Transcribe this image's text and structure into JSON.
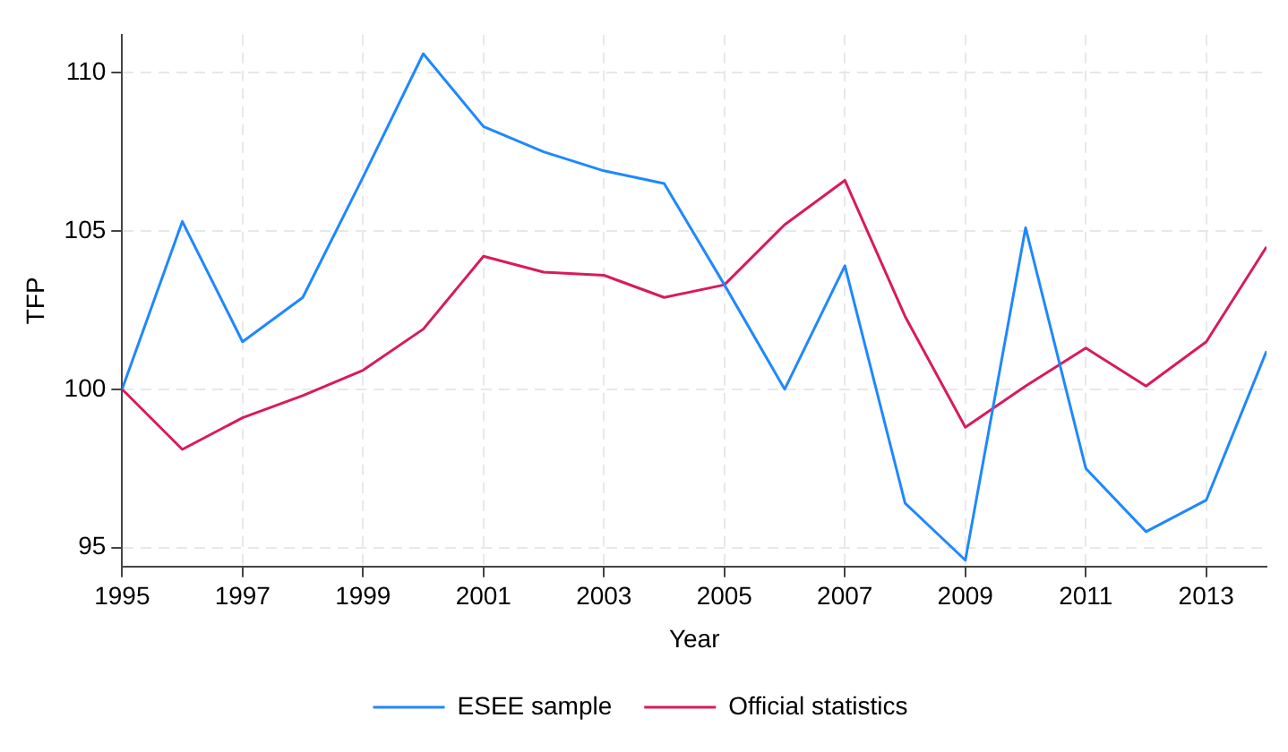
{
  "chart_data": {
    "type": "line",
    "xlabel": "Year",
    "ylabel": "TFP",
    "x": [
      1995,
      1996,
      1997,
      1998,
      1999,
      2000,
      2001,
      2002,
      2003,
      2004,
      2005,
      2006,
      2007,
      2008,
      2009,
      2010,
      2011,
      2012,
      2013,
      2014
    ],
    "series": [
      {
        "name": "ESEE sample",
        "color": "#1e88ff",
        "values": [
          100,
          105.3,
          101.5,
          102.9,
          106.7,
          110.6,
          108.3,
          107.5,
          106.9,
          106.5,
          103.3,
          100.0,
          103.9,
          96.4,
          94.6,
          105.1,
          97.5,
          95.5,
          96.5,
          101.2
        ]
      },
      {
        "name": "Official statistics",
        "color": "#d81b5a",
        "values": [
          100,
          98.1,
          99.1,
          99.8,
          100.6,
          101.9,
          104.2,
          103.7,
          103.6,
          102.9,
          103.3,
          105.2,
          106.6,
          102.3,
          98.8,
          100.1,
          101.3,
          100.1,
          101.5,
          104.5
        ]
      }
    ],
    "xlim": [
      1995,
      2014
    ],
    "xticks": [
      1995,
      1997,
      1999,
      2001,
      2003,
      2005,
      2007,
      2009,
      2011,
      2013
    ],
    "ylim": [
      94.4,
      111.2
    ],
    "yticks": [
      95,
      100,
      105,
      110
    ],
    "grid": true,
    "legend": "bottom",
    "marker": "none",
    "line_style": "solid"
  }
}
